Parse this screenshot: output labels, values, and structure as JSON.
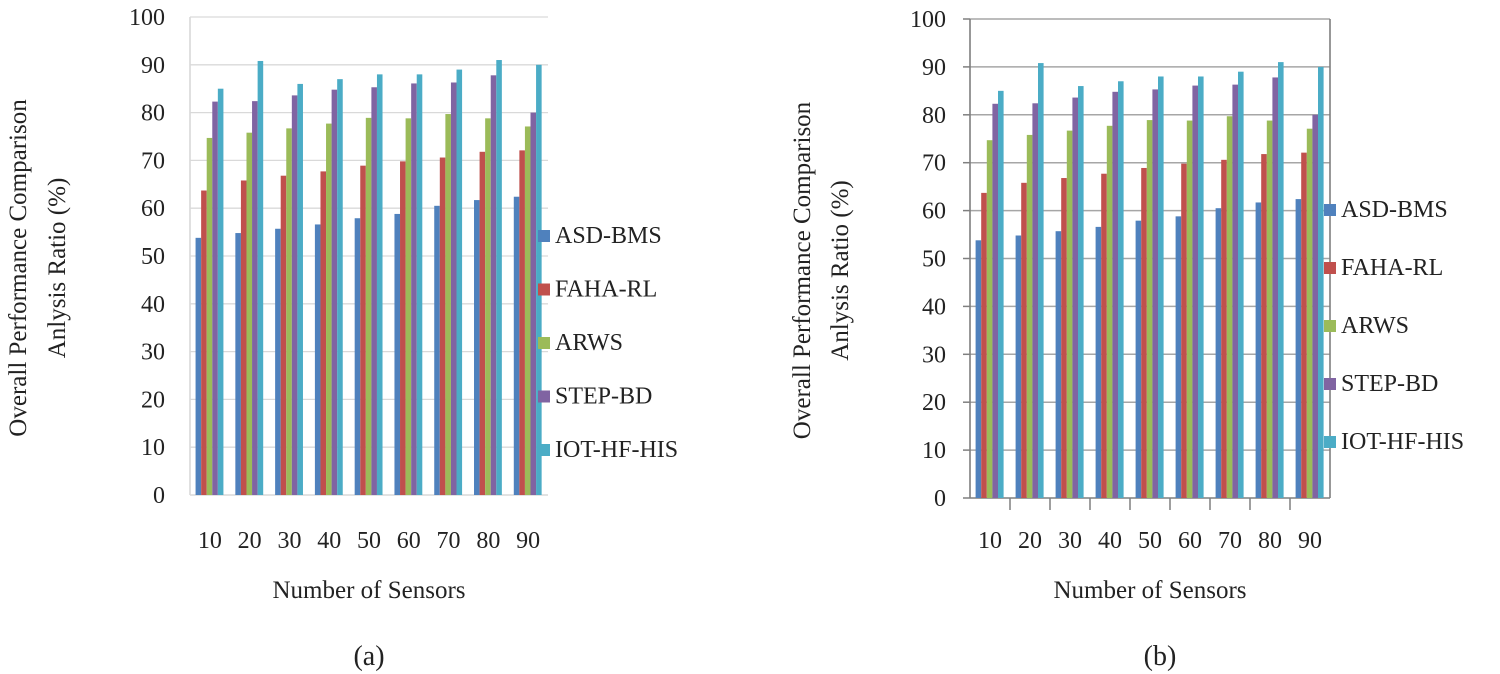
{
  "colors": {
    "ASD-BMS": "#4F81BD",
    "FAHA-RL": "#C0504D",
    "ARWS": "#9BBB59",
    "STEP-BD": "#8064A2",
    "IOT-HF-HIS": "#4BACC6"
  },
  "chart_data": [
    {
      "type": "bar",
      "caption": "(a)",
      "title": "",
      "xlabel": "Number of Sensors",
      "ylabel_line1": "Overall Performance Comparison",
      "ylabel_line2": "Anlysis Ratio (%)",
      "ylim": [
        0,
        100
      ],
      "yticks": [
        "0",
        "10",
        "20",
        "30",
        "40",
        "50",
        "60",
        "70",
        "80",
        "90",
        "100"
      ],
      "grid": true,
      "legend_position": "right",
      "categories": [
        "10",
        "20",
        "30",
        "40",
        "50",
        "60",
        "70",
        "80",
        "90"
      ],
      "series": [
        {
          "name": "ASD-BMS",
          "values": [
            53.8,
            54.8,
            55.7,
            56.6,
            57.9,
            58.8,
            60.5,
            61.7,
            62.4
          ]
        },
        {
          "name": "FAHA-RL",
          "values": [
            63.7,
            65.8,
            66.8,
            67.7,
            68.9,
            69.8,
            70.6,
            71.8,
            72.1
          ]
        },
        {
          "name": "ARWS",
          "values": [
            74.7,
            75.8,
            76.7,
            77.7,
            78.9,
            78.8,
            79.7,
            78.8,
            77.1
          ]
        },
        {
          "name": "STEP-BD",
          "values": [
            82.3,
            82.4,
            83.6,
            84.8,
            85.3,
            86.1,
            86.3,
            87.8,
            80.0
          ]
        },
        {
          "name": "IOT-HF-HIS",
          "values": [
            85.0,
            90.8,
            86.0,
            87.0,
            88.0,
            88.0,
            89.0,
            91.0,
            90.0
          ]
        }
      ]
    },
    {
      "type": "bar",
      "caption": "(b)",
      "title": "",
      "xlabel": "Number of Sensors",
      "ylabel_line1": "Overall Performance Comparison",
      "ylabel_line2": "Anlysis Ratio (%)",
      "ylim": [
        0,
        100
      ],
      "yticks": [
        "0",
        "10",
        "20",
        "30",
        "40",
        "50",
        "60",
        "70",
        "80",
        "90",
        "100"
      ],
      "grid": true,
      "legend_position": "right",
      "categories": [
        "10",
        "20",
        "30",
        "40",
        "50",
        "60",
        "70",
        "80",
        "90"
      ],
      "series": [
        {
          "name": "ASD-BMS",
          "values": [
            53.8,
            54.8,
            55.7,
            56.6,
            57.9,
            58.8,
            60.5,
            61.7,
            62.4
          ]
        },
        {
          "name": "FAHA-RL",
          "values": [
            63.7,
            65.8,
            66.8,
            67.7,
            68.9,
            69.8,
            70.6,
            71.8,
            72.1
          ]
        },
        {
          "name": "ARWS",
          "values": [
            74.7,
            75.8,
            76.7,
            77.7,
            78.9,
            78.8,
            79.7,
            78.8,
            77.1
          ]
        },
        {
          "name": "STEP-BD",
          "values": [
            82.3,
            82.4,
            83.6,
            84.8,
            85.3,
            86.1,
            86.3,
            87.8,
            80.0
          ]
        },
        {
          "name": "IOT-HF-HIS",
          "values": [
            85.0,
            90.8,
            86.0,
            87.0,
            88.0,
            88.0,
            89.0,
            91.0,
            90.0
          ]
        }
      ]
    }
  ]
}
